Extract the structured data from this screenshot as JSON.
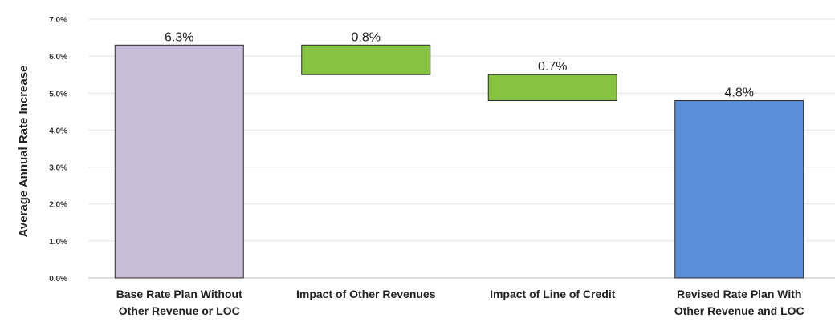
{
  "chart_data": {
    "type": "bar",
    "subtype": "waterfall",
    "title": "",
    "xlabel": "",
    "ylabel": "Average Annual Rate Increase",
    "ylim": [
      0,
      7.0
    ],
    "yticks": [
      "0.0%",
      "1.0%",
      "2.0%",
      "3.0%",
      "4.0%",
      "5.0%",
      "6.0%",
      "7.0%"
    ],
    "grid": true,
    "legend": "none",
    "categories": [
      [
        "Base Rate Plan Without",
        "Other Revenue or LOC"
      ],
      [
        "Impact of Other Revenues"
      ],
      [
        "Impact of Line of Credit"
      ],
      [
        "Revised Rate Plan With",
        "Other Revenue and LOC"
      ]
    ],
    "bars": [
      {
        "base": 0.0,
        "top": 6.3,
        "label": "6.3%",
        "color": "#c7bdd8"
      },
      {
        "base": 5.5,
        "top": 6.3,
        "label": "0.8%",
        "color": "#86c440"
      },
      {
        "base": 4.8,
        "top": 5.5,
        "label": "0.7%",
        "color": "#86c440"
      },
      {
        "base": 0.0,
        "top": 4.8,
        "label": "4.8%",
        "color": "#5a8fd8"
      }
    ]
  }
}
